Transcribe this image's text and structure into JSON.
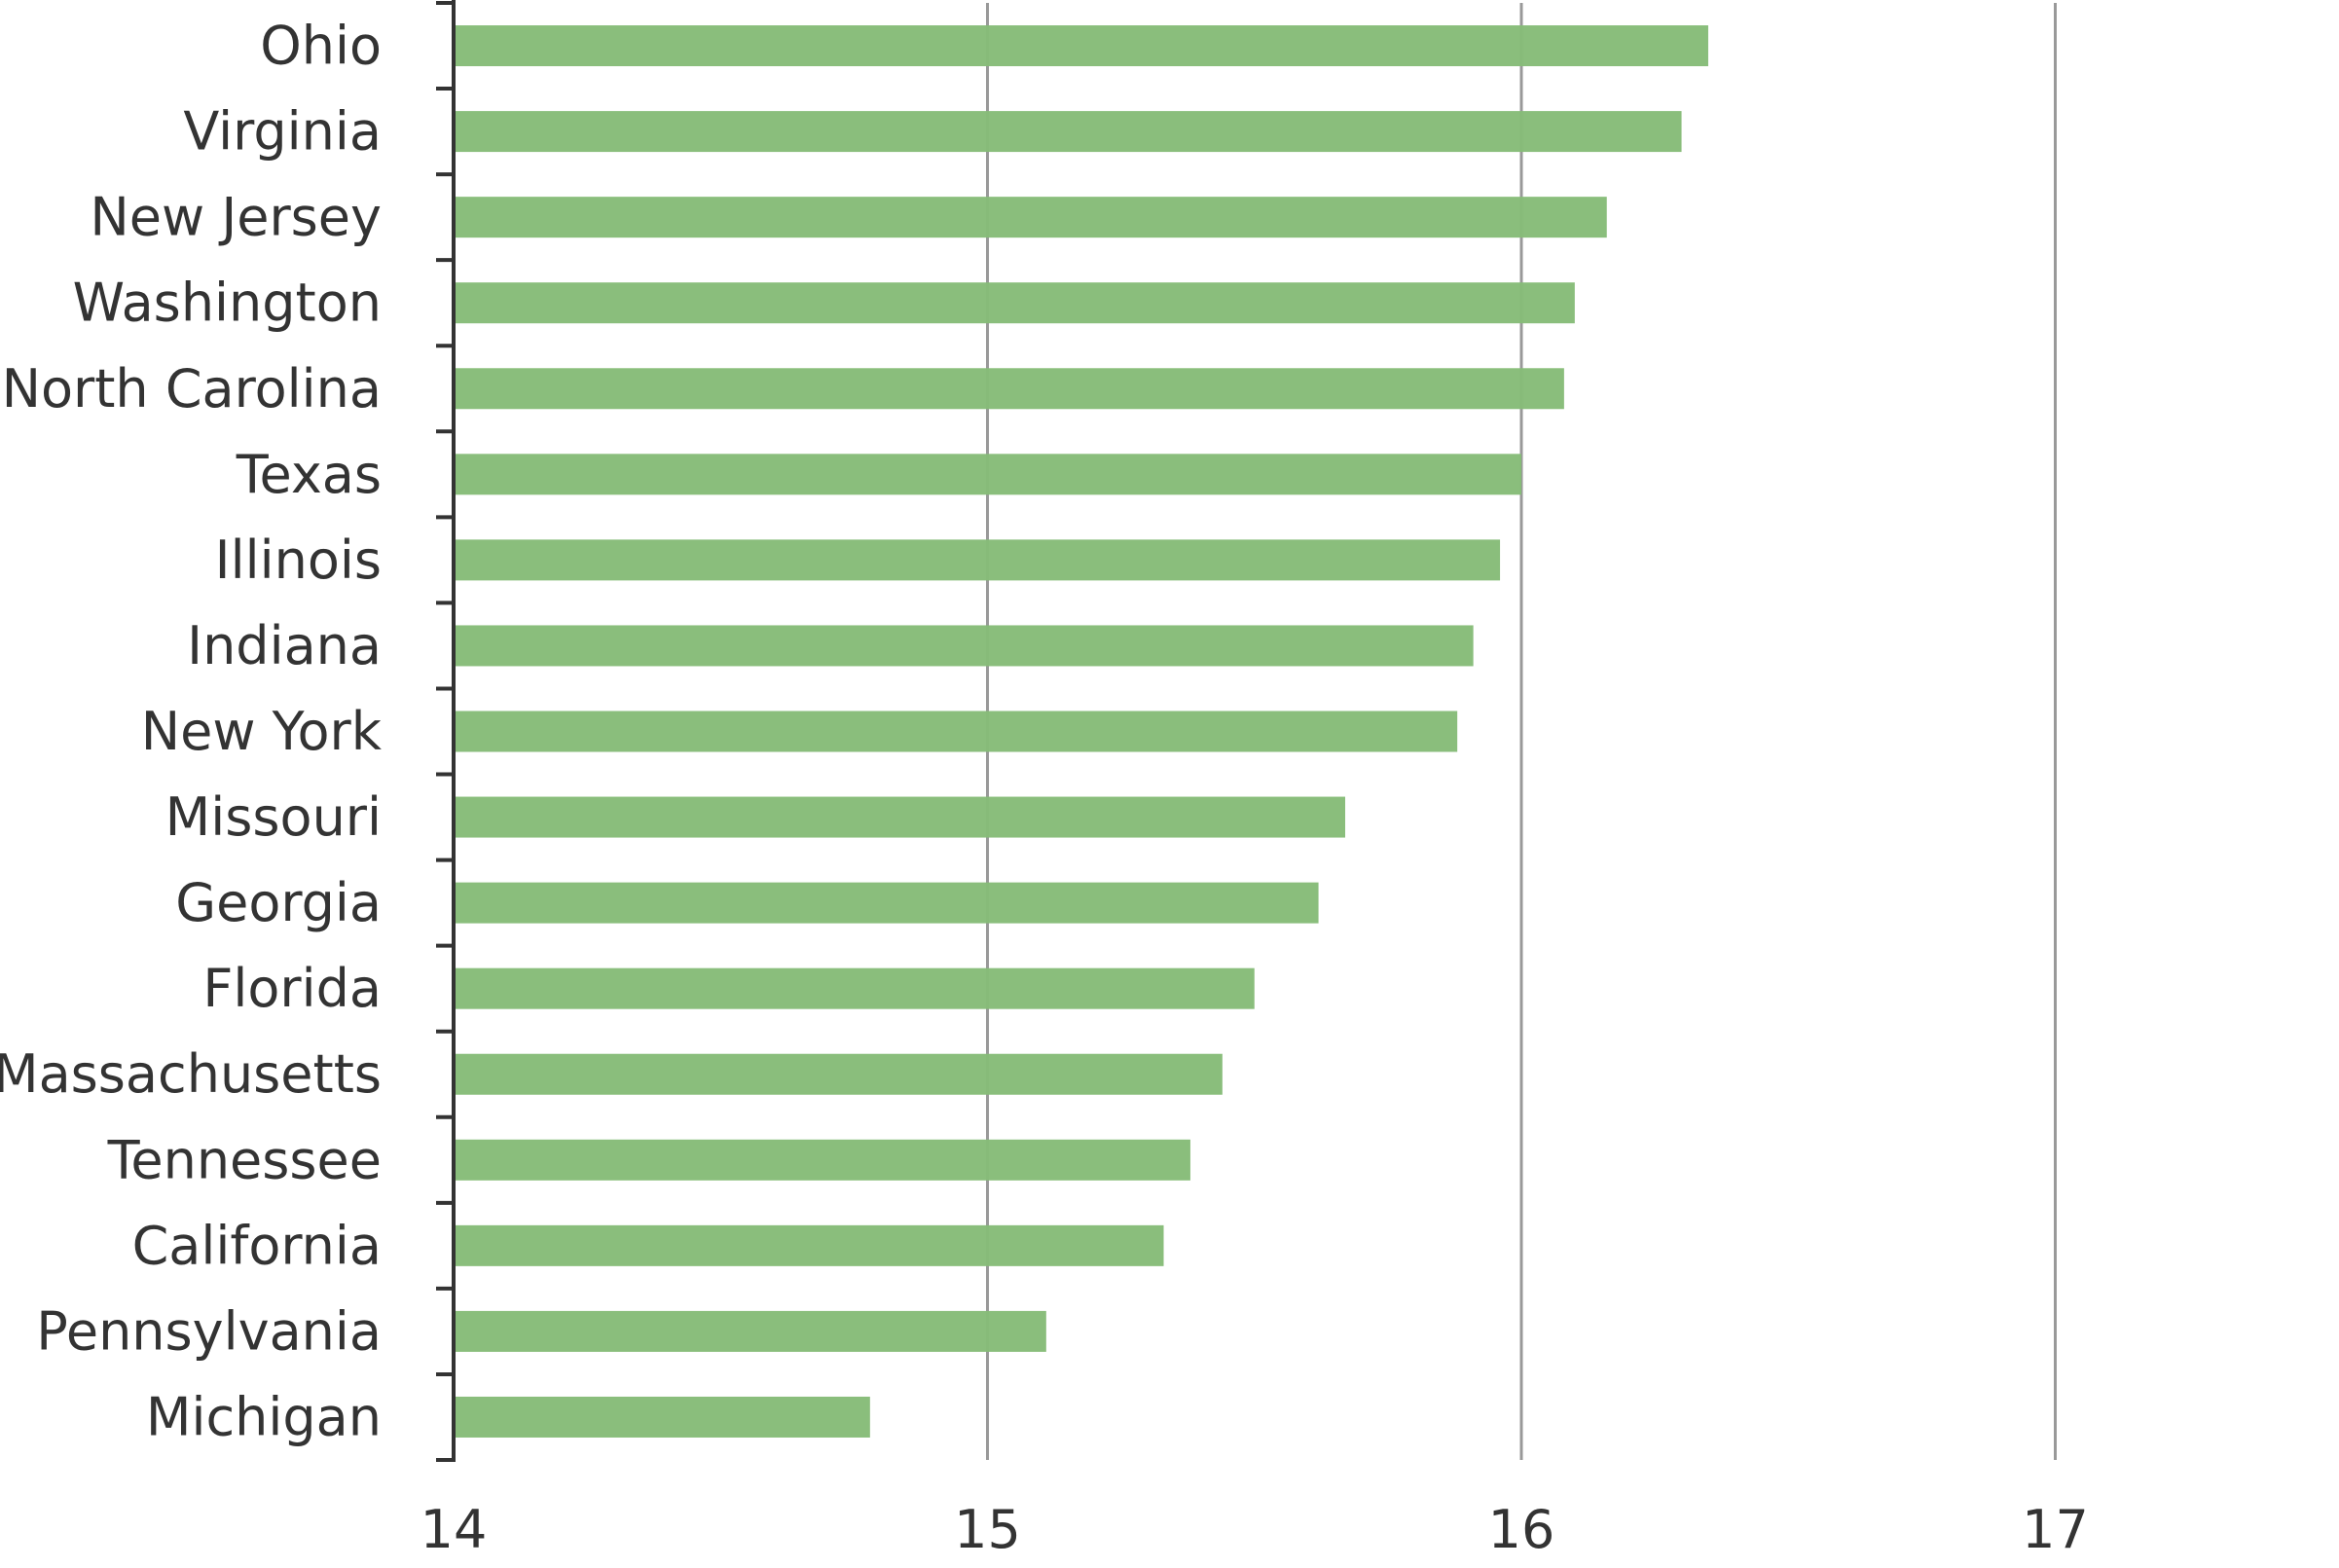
{
  "chart_data": {
    "type": "bar",
    "orientation": "horizontal",
    "categories": [
      "Ohio",
      "Virginia",
      "New Jersey",
      "Washington",
      "North Carolina",
      "Texas",
      "Illinois",
      "Indiana",
      "New York",
      "Missouri",
      "Georgia",
      "Florida",
      "Massachusetts",
      "Tennessee",
      "California",
      "Pennsylvania",
      "Michigan"
    ],
    "values": [
      16.35,
      16.3,
      16.16,
      16.1,
      16.08,
      16.0,
      15.96,
      15.91,
      15.88,
      15.67,
      15.62,
      15.5,
      15.44,
      15.38,
      15.33,
      15.11,
      14.78
    ],
    "xlim": [
      14,
      17.5
    ],
    "xticks": [
      14,
      15,
      16,
      17
    ],
    "xtick_labels": [
      "14",
      "15",
      "16",
      "17"
    ],
    "grid": "vertical",
    "legend": "none",
    "title": "",
    "xlabel": "",
    "ylabel": ""
  },
  "colors": {
    "bar": "#86bc78",
    "grid": "#999999",
    "axis": "#333333",
    "text": "#333333"
  }
}
